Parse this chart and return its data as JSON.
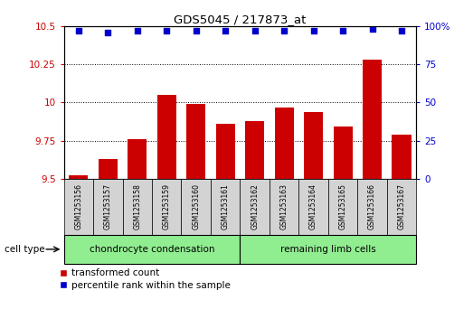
{
  "title": "GDS5045 / 217873_at",
  "samples": [
    "GSM1253156",
    "GSM1253157",
    "GSM1253158",
    "GSM1253159",
    "GSM1253160",
    "GSM1253161",
    "GSM1253162",
    "GSM1253163",
    "GSM1253164",
    "GSM1253165",
    "GSM1253166",
    "GSM1253167"
  ],
  "bar_values": [
    9.52,
    9.63,
    9.76,
    10.05,
    9.99,
    9.86,
    9.88,
    9.97,
    9.94,
    9.84,
    10.28,
    9.79
  ],
  "percentile_values": [
    97,
    96,
    97,
    97,
    97,
    97,
    97,
    97,
    97,
    97,
    98,
    97
  ],
  "bar_color": "#cc0000",
  "percentile_color": "#0000cc",
  "ylim_left": [
    9.5,
    10.5
  ],
  "ylim_right": [
    0,
    100
  ],
  "yticks_left": [
    9.5,
    9.75,
    10.0,
    10.25,
    10.5
  ],
  "ytick_labels_left": [
    "9.5",
    "9.75",
    "10",
    "10.25",
    "10.5"
  ],
  "yticks_right": [
    0,
    25,
    50,
    75,
    100
  ],
  "ytick_labels_right": [
    "0",
    "25",
    "50",
    "75",
    "100%"
  ],
  "group1_label": "chondrocyte condensation",
  "group2_label": "remaining limb cells",
  "group1_count": 6,
  "group2_count": 6,
  "cell_type_label": "cell type",
  "legend1_label": "transformed count",
  "legend2_label": "percentile rank within the sample",
  "sample_bg": "#d3d3d3",
  "group1_bg": "#90ee90",
  "group2_bg": "#90ee90",
  "tick_color_left": "#cc0000",
  "tick_color_right": "#0000cc",
  "fig_width": 5.23,
  "fig_height": 3.63
}
